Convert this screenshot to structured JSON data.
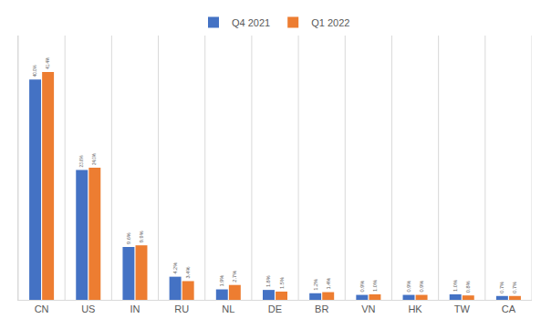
{
  "chart_data": {
    "type": "bar",
    "categories": [
      "CN",
      "US",
      "IN",
      "RU",
      "NL",
      "DE",
      "BR",
      "VN",
      "HK",
      "TW",
      "CA"
    ],
    "series": [
      {
        "name": "Q4 2021",
        "color": "#4472c4",
        "values": [
          40.0,
          23.6,
          9.6,
          4.2,
          1.9,
          1.8,
          1.2,
          0.9,
          0.9,
          1.0,
          0.7
        ],
        "value_labels": [
          "40.0%",
          "23.6%",
          "9.6%",
          "4.2%",
          "1.9%",
          "1.8%",
          "1.2%",
          "0.9%",
          "0.9%",
          "1.0%",
          "0.7%"
        ]
      },
      {
        "name": "Q1 2022",
        "color": "#ed7d31",
        "values": [
          41.4,
          24.0,
          9.9,
          3.4,
          2.7,
          1.5,
          1.4,
          1.0,
          0.9,
          0.8,
          0.7
        ],
        "value_labels": [
          "41.4%",
          "24.0%",
          "9.9%",
          "3.4%",
          "2.7%",
          "1.5%",
          "1.4%",
          "1.0%",
          "0.9%",
          "0.8%",
          "0.7%"
        ]
      }
    ],
    "ylim": [
      0,
      48
    ],
    "data_labels": true,
    "tick_labels": "x",
    "legend": "top",
    "grid": true
  }
}
